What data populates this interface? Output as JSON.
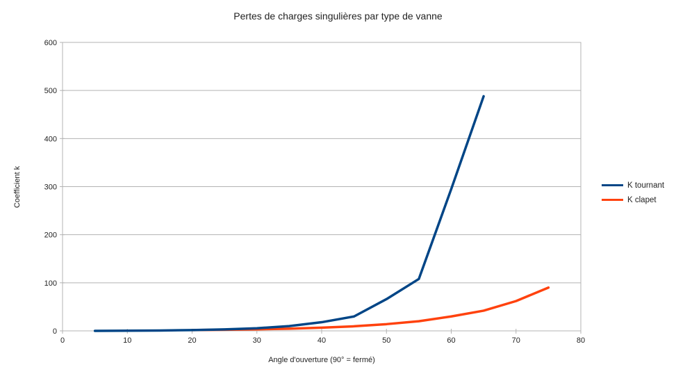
{
  "chart_data": {
    "type": "line",
    "title": "Pertes de charges singulières par type de vanne",
    "xlabel": "Angle d'ouverture (90° = fermé)",
    "ylabel": "Coefficient k",
    "xlim": [
      0,
      80
    ],
    "ylim": [
      0,
      600
    ],
    "x_ticks": [
      0,
      10,
      20,
      30,
      40,
      50,
      60,
      70,
      80
    ],
    "y_ticks": [
      0,
      100,
      200,
      300,
      400,
      500,
      600
    ],
    "grid": "horizontal",
    "legend_position": "right",
    "series": [
      {
        "name": "K tournant",
        "color": "#004586",
        "points": [
          [
            5,
            0.05
          ],
          [
            10,
            0.3
          ],
          [
            15,
            0.8
          ],
          [
            20,
            1.6
          ],
          [
            25,
            3.1
          ],
          [
            30,
            5.5
          ],
          [
            35,
            10
          ],
          [
            40,
            18
          ],
          [
            45,
            30
          ],
          [
            50,
            66
          ],
          [
            55,
            108
          ],
          [
            60,
            295
          ],
          [
            65,
            488
          ]
        ]
      },
      {
        "name": "K clapet",
        "color": "#FF420E",
        "points": [
          [
            20,
            1.7
          ],
          [
            25,
            2.3
          ],
          [
            30,
            3.2
          ],
          [
            35,
            4.6
          ],
          [
            40,
            6.6
          ],
          [
            45,
            9.5
          ],
          [
            50,
            14
          ],
          [
            55,
            20
          ],
          [
            60,
            30
          ],
          [
            65,
            42
          ],
          [
            70,
            62
          ],
          [
            75,
            90
          ]
        ]
      }
    ]
  },
  "colors": {
    "grid": "#b3b3b3",
    "axis": "#b3b3b3",
    "text": "#222222",
    "background": "#ffffff"
  }
}
